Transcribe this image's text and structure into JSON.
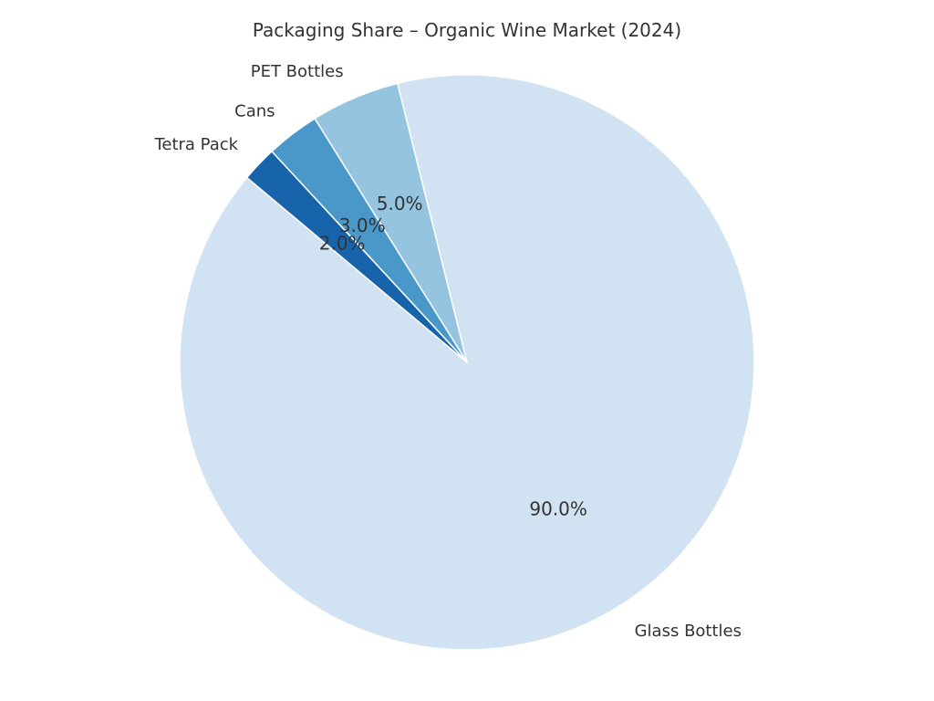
{
  "chart_data": {
    "type": "pie",
    "title": "Packaging Share – Organic Wine Market (2024)",
    "categories": [
      "Glass Bottles",
      "PET Bottles",
      "Cans",
      "Tetra Pack"
    ],
    "values": [
      90.0,
      5.0,
      3.0,
      2.0
    ],
    "percent_labels": [
      "90.0%",
      "5.0%",
      "3.0%",
      "2.0%"
    ],
    "colors": [
      "#d1e2f2",
      "#94c4df",
      "#4a98c9",
      "#1764ab"
    ],
    "start_angle_deg": 140,
    "direction": "counterclockwise",
    "legend": "none"
  }
}
